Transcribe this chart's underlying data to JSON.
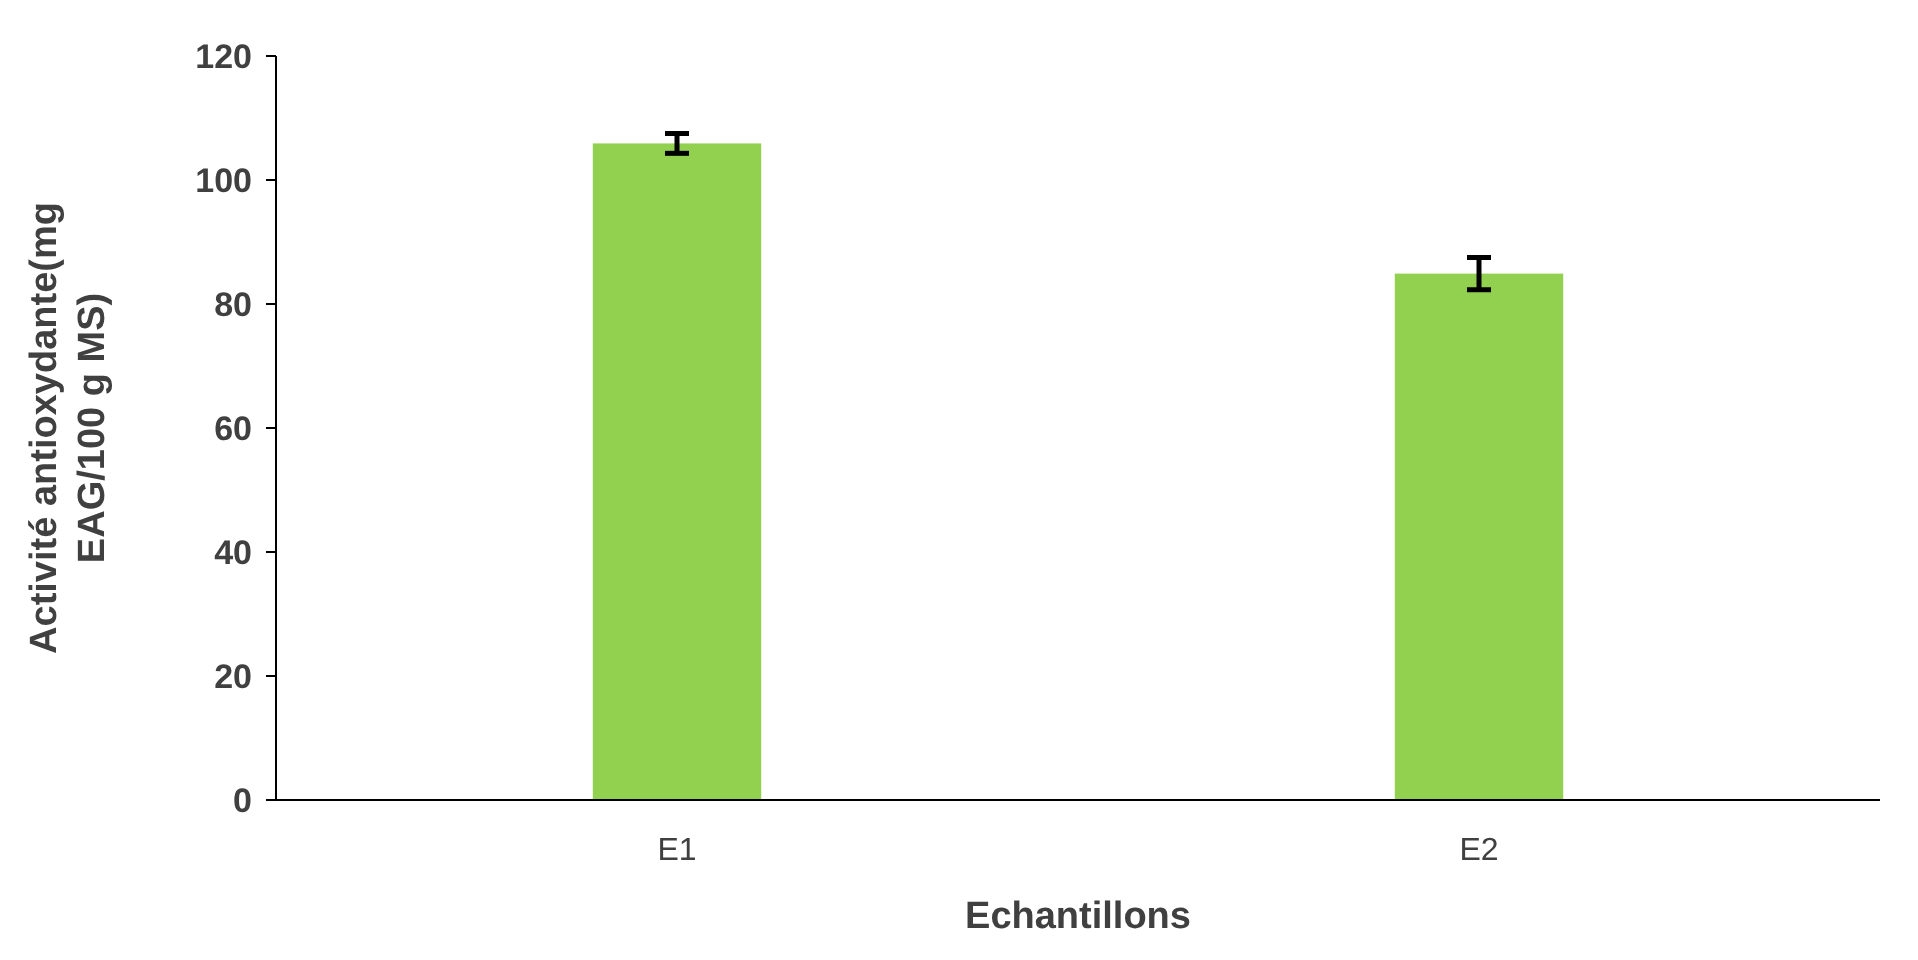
{
  "chart_data": {
    "type": "bar",
    "xlabel": "Echantillons",
    "ylabel": "Activité antioxydante(mg EAG/100 g MS)",
    "categories": [
      "E1",
      "E2"
    ],
    "values": [
      105.9,
      84.9
    ],
    "errors": [
      1.6,
      2.6
    ],
    "color": "#92d050",
    "ylim": [
      0,
      120
    ],
    "yticks": [
      0,
      20,
      40,
      60,
      80,
      100,
      120
    ],
    "grid": false
  }
}
